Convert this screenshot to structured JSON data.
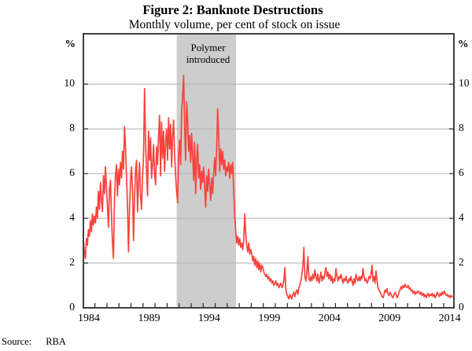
{
  "figure": {
    "title": "Figure 2: Banknote Destructions",
    "subtitle": "Monthly volume, per cent of stock on issue",
    "source_label": "Source:",
    "source_value": "RBA"
  },
  "annotation": {
    "line1": "Polymer",
    "line2": "introduced"
  },
  "axes": {
    "y_unit_left": "%",
    "y_unit_right": "%",
    "y_tick_values": [
      0,
      2,
      4,
      6,
      8,
      10
    ],
    "x_tick_label_years": [
      1984,
      1989,
      1994,
      1999,
      2004,
      2009,
      2014
    ]
  },
  "colors": {
    "line": "#f9423c",
    "band": "#cdcdcd",
    "grid": "#b0b0b0",
    "frame": "#3f3f3f",
    "tick": "#222222",
    "text": "#000000"
  },
  "chart_data": {
    "type": "line",
    "title": "Figure 2: Banknote Destructions",
    "subtitle": "Monthly volume, per cent of stock on issue",
    "ylabel": "%",
    "frequency": "monthly",
    "x_domain": [
      1984.04,
      2014.85
    ],
    "y_domain": [
      0,
      12.25
    ],
    "gridlines_y": [
      2,
      4,
      6,
      8,
      10
    ],
    "x_axis_tick_years_start": 1984,
    "x_axis_tick_years_end": 2014,
    "shaded_band_x": [
      1991.8,
      1996.73
    ],
    "shaded_band_label": "Polymer introduced",
    "legend": "none",
    "series": [
      {
        "name": "Banknote destructions, monthly volume, per cent of stock on issue",
        "values_by_year": {
          "1984": [
            3.0,
            2.5,
            2.2,
            3.1,
            2.8,
            3.5,
            3.2,
            3.9,
            3.4,
            4.2,
            3.7,
            4.1
          ],
          "1985": [
            3.8,
            4.5,
            4.0,
            5.2,
            4.4,
            5.6,
            4.8,
            4.3,
            5.9,
            5.1,
            6.3,
            5.4
          ],
          "1986": [
            4.6,
            3.6,
            5.3,
            5.7,
            4.2,
            2.9,
            2.2,
            4.8,
            5.9,
            6.4,
            5.0,
            6.2
          ],
          "1987": [
            5.5,
            6.5,
            5.8,
            7.0,
            6.2,
            8.1,
            7.2,
            5.9,
            4.6,
            2.5,
            4.4,
            5.7
          ],
          "1988": [
            6.3,
            5.2,
            3.0,
            4.9,
            6.1,
            6.6,
            4.3,
            5.6,
            6.5,
            5.0,
            4.4,
            5.8
          ],
          "1989": [
            6.8,
            9.8,
            7.4,
            6.2,
            5.0,
            7.9,
            6.6,
            7.6,
            5.8,
            6.4,
            7.3,
            6.0
          ],
          "1990": [
            5.5,
            7.2,
            6.4,
            7.7,
            8.6,
            5.9,
            8.3,
            6.7,
            7.9,
            6.1,
            7.4,
            8.0
          ],
          "1991": [
            6.6,
            8.5,
            7.1,
            8.2,
            6.3,
            7.7,
            8.4,
            6.9,
            5.9,
            5.2,
            4.7,
            6.8
          ],
          "1992": [
            7.5,
            6.4,
            8.8,
            9.4,
            10.4,
            8.2,
            6.6,
            9.2,
            8.4,
            7.0,
            7.7,
            6.5
          ],
          "1993": [
            7.8,
            6.9,
            5.7,
            7.4,
            5.1,
            6.6,
            7.3,
            5.8,
            6.4,
            5.3,
            6.1,
            5.6
          ],
          "1994": [
            6.3,
            5.4,
            4.5,
            5.9,
            5.2,
            6.2,
            5.5,
            4.8,
            5.8,
            5.1,
            6.0,
            6.7
          ],
          "1995": [
            5.9,
            7.2,
            8.9,
            7.7,
            6.1,
            7.1,
            6.4,
            7.0,
            6.2,
            6.6,
            5.9,
            6.3
          ],
          "1996": [
            6.1,
            6.5,
            5.8,
            6.4,
            6.0,
            6.5,
            5.2,
            4.1,
            3.4,
            2.9,
            3.2,
            2.8
          ],
          "1997": [
            3.1,
            2.7,
            2.9,
            2.6,
            3.0,
            4.2,
            3.3,
            2.8,
            2.5,
            2.9,
            2.4,
            2.6
          ],
          "1998": [
            2.4,
            2.1,
            2.3,
            1.9,
            2.2,
            1.8,
            2.1,
            1.7,
            2.0,
            1.6,
            1.9,
            1.8
          ],
          "1999": [
            1.6,
            1.5,
            1.4,
            1.5,
            1.3,
            1.4,
            1.2,
            1.3,
            1.1,
            1.2,
            1.0,
            1.1
          ],
          "2000": [
            1.2,
            1.0,
            1.1,
            0.9,
            1.0,
            1.1,
            0.9,
            1.0,
            1.2,
            1.8,
            0.8,
            0.6
          ],
          "2001": [
            0.5,
            0.4,
            0.6,
            0.5,
            0.4,
            0.6,
            0.7,
            0.5,
            0.7,
            0.8,
            0.6,
            0.9
          ],
          "2002": [
            1.0,
            1.2,
            1.5,
            1.9,
            2.7,
            1.4,
            1.2,
            1.6,
            2.3,
            1.3,
            1.2,
            1.4
          ],
          "2003": [
            1.2,
            1.5,
            1.3,
            1.7,
            1.4,
            1.2,
            1.5,
            1.1,
            1.3,
            1.6,
            1.2,
            1.4
          ],
          "2004": [
            1.3,
            1.6,
            1.8,
            1.4,
            1.6,
            1.3,
            1.5,
            1.2,
            1.4,
            1.1,
            1.3,
            1.2
          ],
          "2005": [
            1.75,
            1.4,
            1.2,
            1.4,
            1.3,
            1.5,
            1.3,
            1.1,
            1.3,
            1.2,
            1.4,
            1.2
          ],
          "2006": [
            1.1,
            1.3,
            1.2,
            1.4,
            1.2,
            1.0,
            1.3,
            1.1,
            1.5,
            1.3,
            1.2,
            1.4
          ],
          "2007": [
            1.2,
            1.4,
            1.3,
            1.75,
            1.4,
            1.2,
            1.3,
            1.1,
            1.2,
            1.4,
            1.3,
            1.5
          ],
          "2008": [
            1.9,
            1.2,
            1.4,
            1.1,
            1.65,
            1.2,
            0.9,
            0.8,
            0.7,
            0.6,
            0.5,
            0.45
          ],
          "2009": [
            0.6,
            0.8,
            0.7,
            0.85,
            0.6,
            0.55,
            0.7,
            0.6,
            0.5,
            0.45,
            0.6,
            0.7
          ],
          "2010": [
            0.6,
            0.45,
            0.55,
            0.7,
            0.8,
            0.95,
            0.85,
            1.0,
            0.9,
            1.05,
            0.95,
            0.9
          ],
          "2011": [
            1.0,
            0.85,
            0.9,
            0.75,
            0.8,
            0.65,
            0.75,
            0.6,
            0.7,
            0.65,
            0.75,
            0.7
          ],
          "2012": [
            0.6,
            0.7,
            0.55,
            0.65,
            0.5,
            0.6,
            0.45,
            0.55,
            0.65,
            0.5,
            0.6,
            0.55
          ],
          "2013": [
            0.65,
            0.5,
            0.6,
            0.45,
            0.55,
            0.7,
            0.6,
            0.5,
            0.65,
            0.55,
            0.7,
            0.6
          ],
          "2014": [
            0.75,
            0.65,
            0.55,
            0.6,
            0.5,
            0.55,
            0.45,
            0.55,
            0.5
          ]
        }
      }
    ]
  }
}
